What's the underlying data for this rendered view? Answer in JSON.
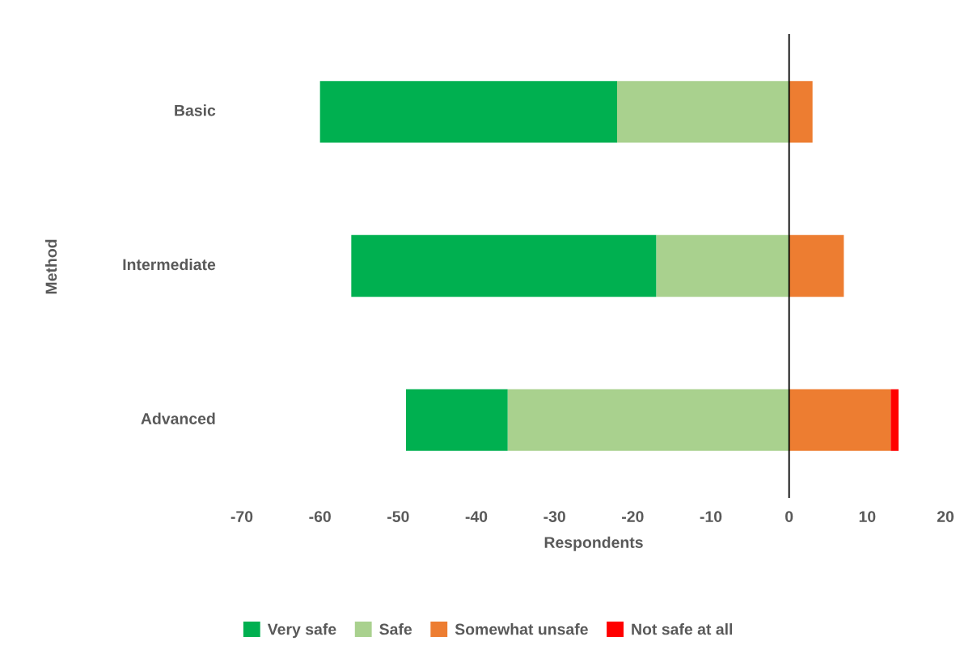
{
  "chart_data": {
    "type": "bar",
    "orientation": "horizontal",
    "stacked": true,
    "xlabel": "Respondents",
    "ylabel": "Method",
    "categories": [
      "Basic",
      "Intermediate",
      "Advanced"
    ],
    "series": [
      {
        "name": "Very safe",
        "color": "#00b050",
        "values": [
          -38,
          -39,
          -13
        ]
      },
      {
        "name": "Safe",
        "color": "#a9d18e",
        "values": [
          -22,
          -17,
          -36
        ]
      },
      {
        "name": "Somewhat unsafe",
        "color": "#ed7d31",
        "values": [
          3,
          7,
          13
        ]
      },
      {
        "name": "Not safe at all",
        "color": "#ff0000",
        "values": [
          0,
          0,
          1
        ]
      }
    ],
    "xlim": [
      -70,
      20
    ],
    "xticks": [
      -70,
      -60,
      -50,
      -40,
      -30,
      -20,
      -10,
      0,
      10,
      20
    ],
    "legend": "bottom"
  }
}
